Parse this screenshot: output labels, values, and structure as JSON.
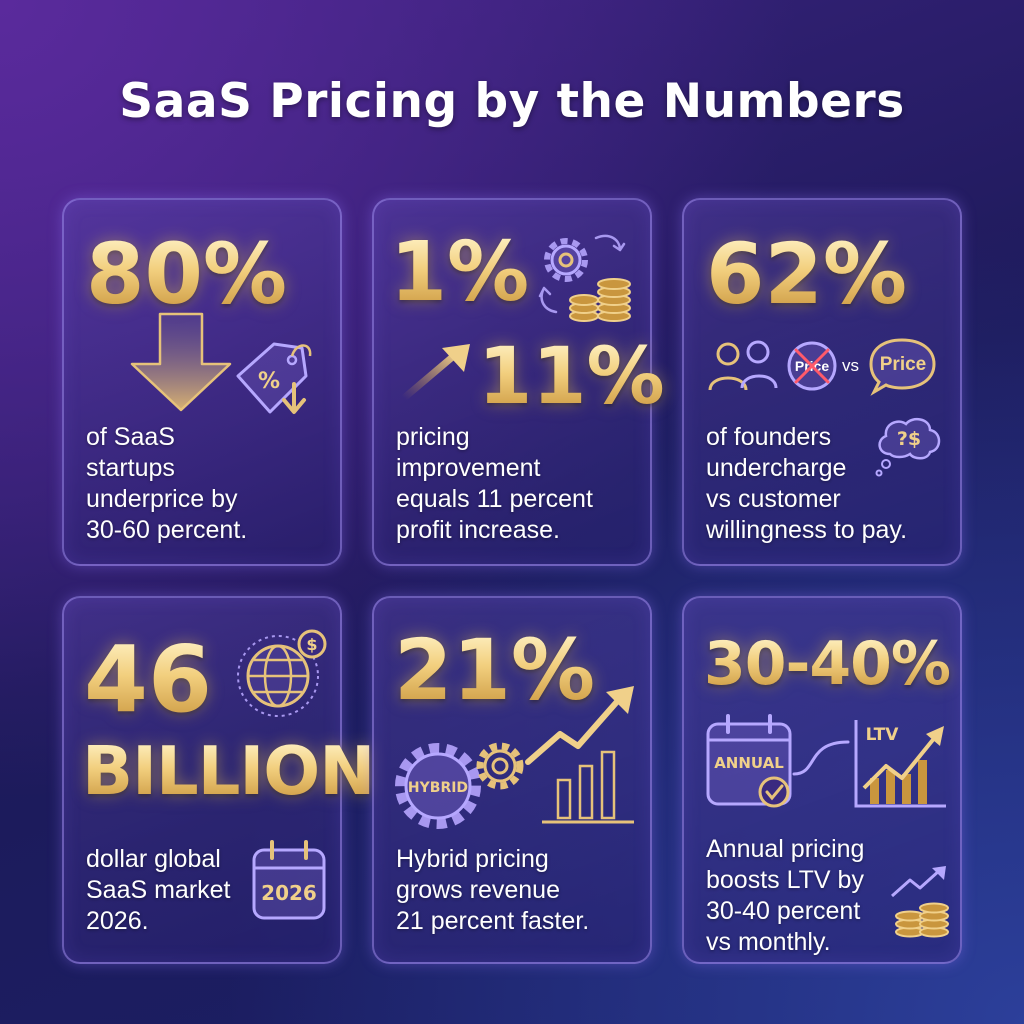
{
  "title": "SaaS Pricing by the Numbers",
  "colors": {
    "gold": "#f2cf7e",
    "gold_dark": "#c9963e",
    "card_border": "#a08cf0",
    "bg_top": "#5a2a9c",
    "bg_bottom": "#1a2066"
  },
  "cards": [
    {
      "stat": "80%",
      "desc": [
        "of SaaS",
        "startups",
        "underprice by",
        "30-60 percent."
      ],
      "icons": [
        "down-arrow-icon",
        "price-tag-icon"
      ],
      "tag_label": "%"
    },
    {
      "stat": "1%",
      "stat2": "11%",
      "desc": [
        "pricing",
        "improvement",
        "equals 11 percent",
        "profit increase."
      ],
      "icons": [
        "gear-icon",
        "coin-stack-icon",
        "up-arrow-icon"
      ]
    },
    {
      "stat": "62%",
      "desc": [
        "of founders",
        "undercharge",
        "vs customer",
        "willingness to pay."
      ],
      "icons": [
        "people-icon",
        "crossed-price-icon",
        "price-bubble-icon",
        "thought-bubble-icon"
      ],
      "crossed_label": "Price",
      "vs_label": "vs",
      "bubble_label": "Price",
      "thought_label": "?$"
    },
    {
      "stat": "46",
      "stat2": "BILLION",
      "desc": [
        "dollar global",
        "SaaS market",
        "2026."
      ],
      "icons": [
        "globe-dollar-icon",
        "calendar-icon"
      ],
      "coin_label": "$",
      "calendar_label": "2026"
    },
    {
      "stat": "21%",
      "desc": [
        "Hybrid pricing",
        "grows revenue",
        "21 percent faster."
      ],
      "icons": [
        "hybrid-gear-icon",
        "gear-icon",
        "growth-chart-icon"
      ],
      "gear_label": "HYBRID"
    },
    {
      "stat": "30-40%",
      "desc": [
        "Annual pricing",
        "boosts LTV by",
        "30-40 percent",
        "vs monthly."
      ],
      "icons": [
        "annual-calendar-icon",
        "ltv-chart-icon",
        "coins-growth-icon"
      ],
      "calendar_label": "ANNUAL",
      "chart_label": "LTV"
    }
  ]
}
